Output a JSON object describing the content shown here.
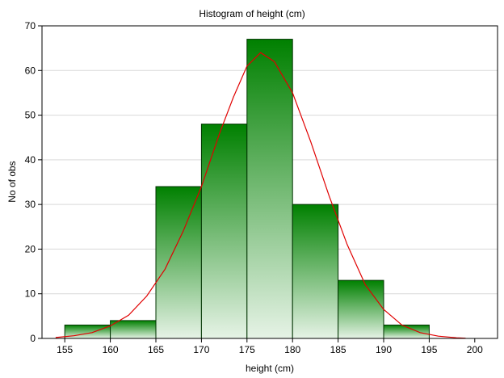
{
  "chart_data": {
    "type": "bar",
    "title": "Histogram of height (cm)",
    "xlabel": "height (cm)",
    "ylabel": "No of obs",
    "xlim": [
      152.5,
      202.5
    ],
    "ylim": [
      0,
      70
    ],
    "x_ticks": [
      155,
      160,
      165,
      170,
      175,
      180,
      185,
      190,
      195,
      200
    ],
    "y_ticks": [
      0,
      10,
      20,
      30,
      40,
      50,
      60,
      70
    ],
    "grid": true,
    "bins": [
      {
        "start": 155,
        "end": 160,
        "count": 3
      },
      {
        "start": 160,
        "end": 165,
        "count": 4
      },
      {
        "start": 165,
        "end": 170,
        "count": 34
      },
      {
        "start": 170,
        "end": 175,
        "count": 48
      },
      {
        "start": 175,
        "end": 180,
        "count": 67
      },
      {
        "start": 180,
        "end": 185,
        "count": 30
      },
      {
        "start": 185,
        "end": 190,
        "count": 13
      },
      {
        "start": 190,
        "end": 195,
        "count": 3
      }
    ],
    "fit_curve": {
      "type": "normal",
      "color": "#e00000",
      "points": [
        [
          154,
          0.2
        ],
        [
          156,
          0.6
        ],
        [
          158,
          1.3
        ],
        [
          160,
          2.8
        ],
        [
          162,
          5.2
        ],
        [
          164,
          9.5
        ],
        [
          166,
          15.5
        ],
        [
          168,
          24
        ],
        [
          170,
          34
        ],
        [
          172,
          46
        ],
        [
          173.5,
          54
        ],
        [
          175,
          61
        ],
        [
          176.5,
          64
        ],
        [
          178,
          62
        ],
        [
          180,
          55
        ],
        [
          182,
          44
        ],
        [
          184,
          32
        ],
        [
          186,
          21
        ],
        [
          188,
          12
        ],
        [
          190,
          6.5
        ],
        [
          192,
          3
        ],
        [
          194,
          1.3
        ],
        [
          196,
          0.5
        ],
        [
          198,
          0.15
        ],
        [
          199,
          0.05
        ]
      ]
    },
    "colors": {
      "bar_top": "#008000",
      "bar_bottom": "#e6f3e6",
      "bar_stroke": "#003300",
      "grid": "#d9d9d9",
      "axis": "#000000"
    }
  }
}
